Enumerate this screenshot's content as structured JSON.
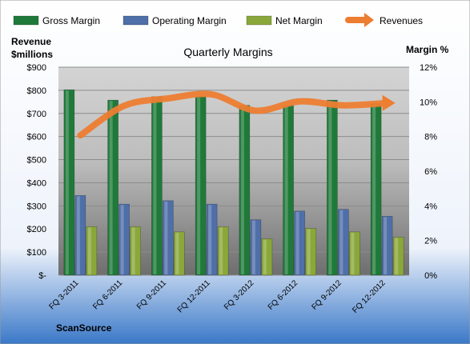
{
  "chart_data": {
    "type": "bar",
    "title": "Quarterly Margins",
    "company": "ScanSource",
    "categories": [
      "FQ 3-2011",
      "FQ 6-2011",
      "FQ 9-2011",
      "FQ 12-2011",
      "FQ 3-2012",
      "FQ 6-2012",
      "FQ 9-2012",
      "FQ 12-2012"
    ],
    "series": [
      {
        "name": "Gross Margin",
        "kind": "bar",
        "axis": "right",
        "color": "#1f7a3a",
        "values": [
          10.7,
          10.1,
          10.3,
          10.3,
          9.8,
          9.8,
          10.1,
          9.9
        ]
      },
      {
        "name": "Operating Margin",
        "kind": "bar",
        "axis": "right",
        "color": "#4f6fa8",
        "values": [
          4.6,
          4.1,
          4.3,
          4.1,
          3.2,
          3.7,
          3.8,
          3.4
        ]
      },
      {
        "name": "Net Margin",
        "kind": "bar",
        "axis": "right",
        "color": "#8aa83a",
        "values": [
          2.8,
          2.8,
          2.5,
          2.8,
          2.1,
          2.7,
          2.5,
          2.2
        ]
      },
      {
        "name": "Revenues",
        "kind": "line",
        "axis": "left",
        "color": "#ed7d31",
        "values": [
          605,
          733,
          765,
          782,
          712,
          752,
          735,
          745
        ]
      }
    ],
    "left_axis": {
      "label_line1": "Revenue",
      "label_line2": "$millions",
      "min": 0,
      "max": 900,
      "ticks": [
        "$-",
        "$100",
        "$200",
        "$300",
        "$400",
        "$500",
        "$600",
        "$700",
        "$800",
        "$900"
      ]
    },
    "right_axis": {
      "label": "Margin %",
      "min": 0,
      "max": 12,
      "ticks": [
        "0%",
        "2%",
        "4%",
        "6%",
        "8%",
        "10%",
        "12%"
      ]
    },
    "grid": true,
    "legend_position": "top"
  }
}
